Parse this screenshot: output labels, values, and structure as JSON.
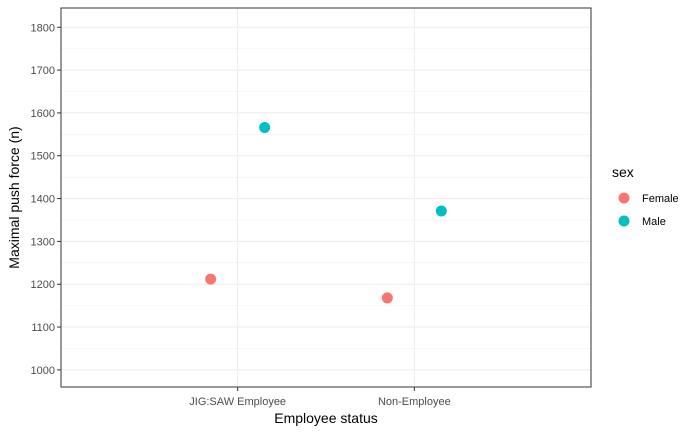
{
  "chart_data": {
    "type": "scatter",
    "title": "",
    "xlabel": "Employee status",
    "ylabel": "Maximal push force (n)",
    "categories": [
      "JIG:SAW Employee",
      "Non-Employee"
    ],
    "ylim": [
      960,
      1845
    ],
    "yticks": [
      1000,
      1100,
      1200,
      1300,
      1400,
      1500,
      1600,
      1700,
      1800
    ],
    "grid": true,
    "legend": {
      "title": "sex",
      "placement": "right"
    },
    "series": [
      {
        "name": "Female",
        "color": "#F8766D",
        "points": [
          {
            "x": "JIG:SAW Employee",
            "y": 1212
          },
          {
            "x": "Non-Employee",
            "y": 1168
          }
        ]
      },
      {
        "name": "Male",
        "color": "#00BFC4",
        "points": [
          {
            "x": "JIG:SAW Employee",
            "y": 1566
          },
          {
            "x": "Non-Employee",
            "y": 1371
          }
        ]
      }
    ]
  }
}
